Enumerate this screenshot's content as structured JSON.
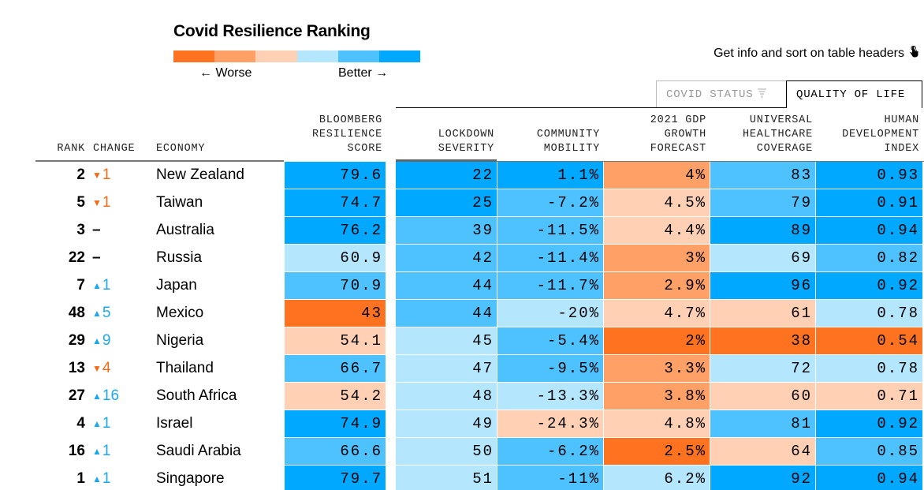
{
  "title": "Covid Resilience Ranking",
  "legend": {
    "worse_label": "← Worse",
    "better_label": "Better →",
    "scale_colors": [
      "#ff7320",
      "#ffa066",
      "#ffd0b4",
      "#b4e6fe",
      "#4ec2ff",
      "#00a8ff"
    ]
  },
  "hint": {
    "text": "Get info and sort on table headers",
    "icon": "pointer-hand-icon"
  },
  "tabs": [
    {
      "label": "COVID STATUS",
      "icon": "filter-icon",
      "active": false
    },
    {
      "label": "QUALITY OF LIFE",
      "active": true
    }
  ],
  "headers": {
    "rank": "RANK",
    "change": "CHANGE",
    "economy": "ECONOMY",
    "score": [
      "BLOOMBERG",
      "RESILIENCE",
      "SCORE"
    ],
    "lockdown": [
      "LOCKDOWN",
      "SEVERITY"
    ],
    "mobility": [
      "COMMUNITY",
      "MOBILITY"
    ],
    "gdp": [
      "2021 GDP",
      "GROWTH",
      "FORECAST"
    ],
    "uhc": [
      "UNIVERSAL",
      "HEALTHCARE",
      "COVERAGE"
    ],
    "hdi": [
      "HUMAN",
      "DEVELOPMENT",
      "INDEX"
    ]
  },
  "sorted_column": "lockdown",
  "colors": {
    "up": "#1ba7ef",
    "down": "#f36b17"
  },
  "rows": [
    {
      "rank": "2",
      "dir": "down",
      "change": "1",
      "economy": "New Zealand",
      "score": "79.6",
      "lockdown": "22",
      "mobility": "1.1%",
      "gdp": "4%",
      "uhc": "83",
      "hdi": "0.93",
      "c": [
        5,
        5,
        5,
        1,
        4,
        5
      ]
    },
    {
      "rank": "5",
      "dir": "down",
      "change": "1",
      "economy": "Taiwan",
      "score": "74.7",
      "lockdown": "25",
      "mobility": "-7.2%",
      "gdp": "4.5%",
      "uhc": "79",
      "hdi": "0.91",
      "c": [
        5,
        5,
        4,
        2,
        4,
        5
      ]
    },
    {
      "rank": "3",
      "dir": "none",
      "change": "–",
      "economy": "Australia",
      "score": "76.2",
      "lockdown": "39",
      "mobility": "-11.5%",
      "gdp": "4.4%",
      "uhc": "89",
      "hdi": "0.94",
      "c": [
        5,
        4,
        4,
        2,
        5,
        5
      ]
    },
    {
      "rank": "22",
      "dir": "none",
      "change": "–",
      "economy": "Russia",
      "score": "60.9",
      "lockdown": "42",
      "mobility": "-11.4%",
      "gdp": "3%",
      "uhc": "69",
      "hdi": "0.82",
      "c": [
        3,
        4,
        4,
        1,
        3,
        4
      ]
    },
    {
      "rank": "7",
      "dir": "up",
      "change": "1",
      "economy": "Japan",
      "score": "70.9",
      "lockdown": "44",
      "mobility": "-11.7%",
      "gdp": "2.9%",
      "uhc": "96",
      "hdi": "0.92",
      "c": [
        4,
        4,
        4,
        1,
        5,
        5
      ]
    },
    {
      "rank": "48",
      "dir": "up",
      "change": "5",
      "economy": "Mexico",
      "score": "43",
      "lockdown": "44",
      "mobility": "-20%",
      "gdp": "4.7%",
      "uhc": "61",
      "hdi": "0.78",
      "c": [
        0,
        4,
        3,
        2,
        2,
        3
      ]
    },
    {
      "rank": "29",
      "dir": "up",
      "change": "9",
      "economy": "Nigeria",
      "score": "54.1",
      "lockdown": "45",
      "mobility": "-5.4%",
      "gdp": "2%",
      "uhc": "38",
      "hdi": "0.54",
      "c": [
        2,
        3,
        4,
        0,
        0,
        0
      ]
    },
    {
      "rank": "13",
      "dir": "down",
      "change": "4",
      "economy": "Thailand",
      "score": "66.7",
      "lockdown": "47",
      "mobility": "-9.5%",
      "gdp": "3.3%",
      "uhc": "72",
      "hdi": "0.78",
      "c": [
        4,
        3,
        4,
        1,
        3,
        3
      ]
    },
    {
      "rank": "27",
      "dir": "up",
      "change": "16",
      "economy": "South Africa",
      "score": "54.2",
      "lockdown": "48",
      "mobility": "-13.3%",
      "gdp": "3.8%",
      "uhc": "60",
      "hdi": "0.71",
      "c": [
        2,
        3,
        3,
        1,
        2,
        2
      ]
    },
    {
      "rank": "4",
      "dir": "up",
      "change": "1",
      "economy": "Israel",
      "score": "74.9",
      "lockdown": "49",
      "mobility": "-24.3%",
      "gdp": "4.8%",
      "uhc": "81",
      "hdi": "0.92",
      "c": [
        5,
        3,
        2,
        2,
        4,
        5
      ]
    },
    {
      "rank": "16",
      "dir": "up",
      "change": "1",
      "economy": "Saudi Arabia",
      "score": "66.6",
      "lockdown": "50",
      "mobility": "-6.2%",
      "gdp": "2.5%",
      "uhc": "64",
      "hdi": "0.85",
      "c": [
        4,
        3,
        4,
        0,
        2,
        4
      ]
    },
    {
      "rank": "1",
      "dir": "up",
      "change": "1",
      "economy": "Singapore",
      "score": "79.7",
      "lockdown": "51",
      "mobility": "-11%",
      "gdp": "6.2%",
      "uhc": "92",
      "hdi": "0.94",
      "c": [
        5,
        3,
        4,
        3,
        5,
        5
      ]
    }
  ]
}
